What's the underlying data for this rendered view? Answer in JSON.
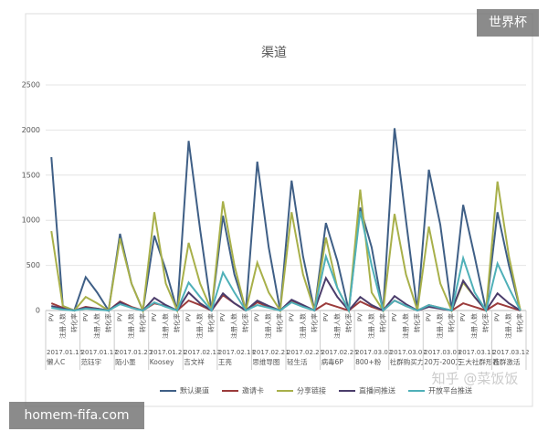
{
  "chart_data": {
    "type": "line",
    "title": "渠道",
    "categories": [
      "PV",
      "注册人数",
      "转化率",
      "PV",
      "注册人数",
      "转化率",
      "PV",
      "注册人数",
      "转化率",
      "PV",
      "注册人数",
      "转化率",
      "PV",
      "注册人数",
      "转化率",
      "PV",
      "注册人数",
      "转化率",
      "PV",
      "注册人数",
      "转化率",
      "PV",
      "注册人数",
      "转化率",
      "PV",
      "注册人数",
      "转化率",
      "PV",
      "注册人数",
      "转化率",
      "PV",
      "注册人数",
      "转化率",
      "PV",
      "注册人数",
      "转化率",
      "PV",
      "注册人数",
      "转化率",
      "PV",
      "注册人数",
      "转化率"
    ],
    "groups": [
      {
        "date": "2017.01.15",
        "name": "懒人C"
      },
      {
        "date": "2017.01.17",
        "name": "范钰宇"
      },
      {
        "date": "2017.01.20",
        "name": "陌小墨"
      },
      {
        "date": "2017.01.21",
        "name": "Koosey"
      },
      {
        "date": "2017.02.12",
        "name": "吉文祥"
      },
      {
        "date": "2017.02.18",
        "name": "王亮"
      },
      {
        "date": "2017.02.21",
        "name": "思维导图"
      },
      {
        "date": "2017.02.25",
        "name": "轻生活"
      },
      {
        "date": "2017.02.26",
        "name": "病毒6P"
      },
      {
        "date": "2017.03.02",
        "name": "800+粉"
      },
      {
        "date": "2017.03.07",
        "name": "社群购买力"
      },
      {
        "date": "2017.03.09",
        "name": "20万-200万"
      },
      {
        "date": "2017.03.11",
        "name": "三大社群形态"
      },
      {
        "date": "2017.03.12",
        "name": "社群激活"
      }
    ],
    "series": [
      {
        "name": "默认渠道",
        "color": "#3f5f86",
        "values": [
          1700,
          50,
          0,
          370,
          200,
          0,
          850,
          300,
          0,
          830,
          450,
          0,
          1880,
          900,
          0,
          1050,
          400,
          0,
          1650,
          700,
          0,
          1440,
          600,
          0,
          970,
          550,
          0,
          1140,
          700,
          0,
          2020,
          1000,
          0,
          1560,
          950,
          0,
          1170,
          600,
          0,
          1090,
          500,
          0
        ]
      },
      {
        "name": "邀请卡",
        "color": "#9b3b3b",
        "values": [
          80,
          30,
          0,
          40,
          20,
          0,
          100,
          40,
          0,
          80,
          50,
          0,
          110,
          60,
          0,
          170,
          80,
          0,
          90,
          40,
          0,
          100,
          50,
          0,
          80,
          40,
          0,
          100,
          40,
          0,
          110,
          50,
          0,
          60,
          30,
          0,
          80,
          40,
          0,
          80,
          40,
          0
        ]
      },
      {
        "name": "分享链接",
        "color": "#a8b04a",
        "values": [
          880,
          50,
          0,
          150,
          80,
          0,
          800,
          300,
          0,
          1090,
          300,
          0,
          750,
          300,
          0,
          1210,
          500,
          0,
          530,
          200,
          0,
          1090,
          400,
          0,
          810,
          250,
          0,
          1340,
          200,
          0,
          1070,
          400,
          0,
          930,
          300,
          0,
          310,
          150,
          0,
          1430,
          600,
          0
        ]
      },
      {
        "name": "直播间推送",
        "color": "#4b3d6b",
        "values": [
          50,
          20,
          0,
          30,
          20,
          0,
          90,
          30,
          0,
          140,
          60,
          0,
          200,
          80,
          0,
          190,
          80,
          0,
          110,
          50,
          0,
          120,
          60,
          0,
          360,
          150,
          0,
          150,
          60,
          0,
          160,
          70,
          0,
          40,
          20,
          0,
          330,
          150,
          0,
          190,
          80,
          0
        ]
      },
      {
        "name": "开放平台推送",
        "color": "#4fb0b8",
        "values": [
          30,
          10,
          0,
          20,
          10,
          0,
          70,
          30,
          0,
          90,
          40,
          0,
          310,
          150,
          0,
          420,
          200,
          0,
          60,
          30,
          0,
          90,
          40,
          0,
          600,
          250,
          0,
          1100,
          500,
          0,
          110,
          50,
          0,
          60,
          30,
          0,
          580,
          200,
          0,
          520,
          250,
          0
        ]
      }
    ],
    "ylim": [
      0,
      2500
    ],
    "yticks": [
      0,
      500,
      1000,
      1500,
      2000,
      2500
    ],
    "grid": true
  },
  "overlays": {
    "badge": "世界杯",
    "watermark": "知乎 @菜饭饭",
    "site": "homem-fifa.com"
  }
}
